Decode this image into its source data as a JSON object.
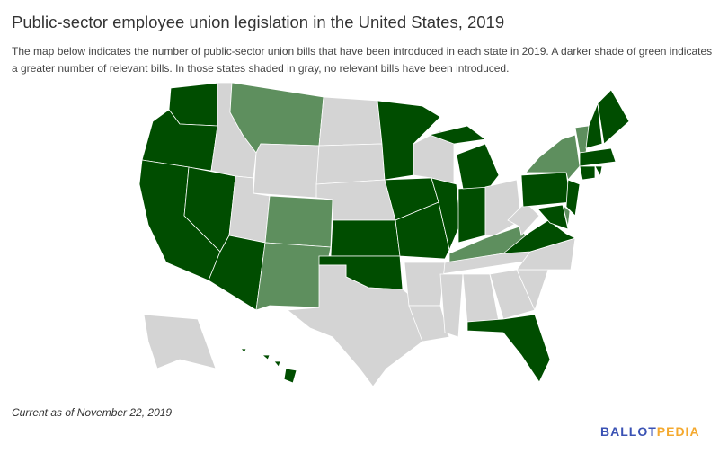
{
  "title": "Public-sector employee union legislation in the United States, 2019",
  "subtitle": "The map below indicates the number of public-sector union bills that have been introduced in each state in 2019. A darker shade of green indicates a greater number of relevant bills. In those states shaded in gray, no relevant bills have been introduced.",
  "footnote": "Current as of November 22, 2019",
  "logo": {
    "part1": "BALLOT",
    "part2": "PEDIA"
  },
  "colors": {
    "more_bills": "#004d00",
    "fewer_bills": "#5e8f5e",
    "no_bills": "#d4d4d4",
    "logo_blue": "#3a52b4",
    "logo_orange": "#f4a92f"
  },
  "states": {
    "more_bills": [
      "WA",
      "OR",
      "CA",
      "NV",
      "AZ",
      "MN",
      "IA",
      "MO",
      "KS",
      "OK",
      "IL",
      "IN",
      "MI",
      "PA",
      "NJ",
      "MD",
      "VA",
      "FL",
      "HI",
      "ME",
      "NH",
      "MA",
      "CT",
      "RI"
    ],
    "fewer_bills": [
      "MT",
      "CO",
      "NM",
      "NY",
      "VT",
      "DE",
      "KY"
    ],
    "no_bills": [
      "ID",
      "WY",
      "UT",
      "ND",
      "SD",
      "NE",
      "TX",
      "WI",
      "OH",
      "WV",
      "TN",
      "AR",
      "LA",
      "MS",
      "AL",
      "GA",
      "SC",
      "NC",
      "AK"
    ]
  }
}
